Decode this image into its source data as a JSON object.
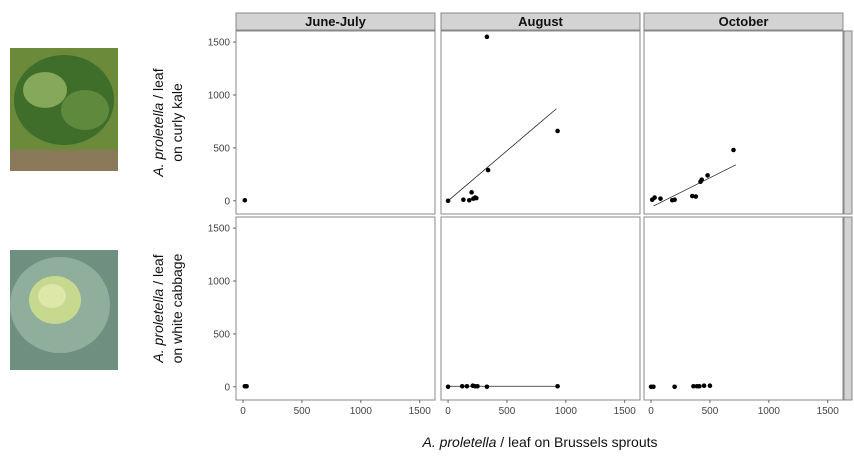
{
  "chart_data": [
    {
      "type": "scatter",
      "title": "June-July",
      "x": [
        15
      ],
      "y": [
        5
      ],
      "xlim": [
        -60,
        1630
      ],
      "ylim": [
        -125,
        1605
      ],
      "yticks": [
        0,
        500,
        1000,
        1500
      ],
      "color": "#000000"
    },
    {
      "type": "scatter",
      "title": "August",
      "x": [
        0,
        130,
        180,
        200,
        215,
        230,
        240,
        330,
        340,
        930
      ],
      "y": [
        0,
        10,
        5,
        80,
        20,
        30,
        25,
        1550,
        290,
        660
      ],
      "fit": {
        "x": [
          0,
          920
        ],
        "y": [
          0,
          870
        ]
      },
      "xlim": [
        -60,
        1630
      ],
      "ylim": [
        -125,
        1605
      ],
      "color": "#000000"
    },
    {
      "type": "scatter",
      "title": "October",
      "x": [
        10,
        30,
        80,
        180,
        200,
        350,
        380,
        420,
        430,
        480,
        700
      ],
      "y": [
        10,
        30,
        20,
        5,
        10,
        45,
        40,
        180,
        200,
        240,
        480
      ],
      "fit": {
        "x": [
          20,
          720
        ],
        "y": [
          -50,
          340
        ]
      },
      "xlim": [
        -60,
        1630
      ],
      "ylim": [
        -125,
        1605
      ],
      "color": "#000000"
    },
    {
      "type": "scatter",
      "x": [
        15,
        25,
        30
      ],
      "y": [
        5,
        5,
        5
      ],
      "xlim": [
        -60,
        1630
      ],
      "ylim": [
        -125,
        1605
      ],
      "xticks": [
        0,
        500,
        1000,
        1500
      ],
      "yticks": [
        0,
        500,
        1000,
        1500
      ],
      "color": "#000000"
    },
    {
      "type": "scatter",
      "x": [
        0,
        120,
        160,
        210,
        230,
        250,
        330,
        930
      ],
      "y": [
        0,
        5,
        5,
        10,
        5,
        5,
        0,
        5
      ],
      "fit": {
        "x": [
          0,
          930
        ],
        "y": [
          5,
          5
        ]
      },
      "xlim": [
        -60,
        1630
      ],
      "ylim": [
        -125,
        1605
      ],
      "xticks": [
        0,
        500,
        1000,
        1500
      ],
      "color": "#000000"
    },
    {
      "type": "scatter",
      "x": [
        0,
        20,
        200,
        360,
        390,
        410,
        450,
        500
      ],
      "y": [
        0,
        0,
        0,
        5,
        5,
        5,
        10,
        10
      ],
      "xlim": [
        -60,
        1630
      ],
      "ylim": [
        -125,
        1605
      ],
      "xticks": [
        0,
        500,
        1000,
        1500
      ],
      "color": "#000000"
    }
  ],
  "figure": {
    "x_label": [
      "A. proletella",
      " / leaf on Brussels sprouts"
    ],
    "y_labels": [
      [
        "A. proletella",
        " / leaf",
        "on curly kale"
      ],
      [
        "A. proletella",
        " / leaf",
        "on white cabbage"
      ]
    ]
  }
}
